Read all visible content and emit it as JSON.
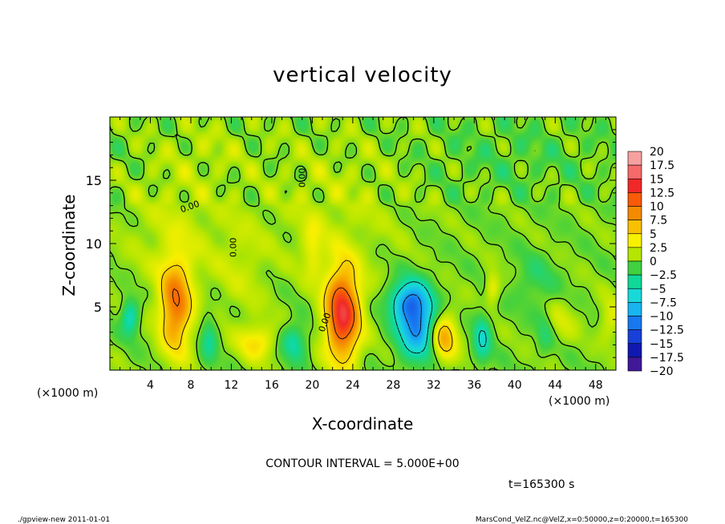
{
  "chart_data": {
    "type": "heatmap",
    "title": "vertical velocity",
    "xlabel": "X-coordinate",
    "ylabel": "Z-coordinate",
    "x_unit_left": "(×1000 m)",
    "x_unit_right": "(×1000 m)",
    "xlim": [
      0,
      50
    ],
    "ylim": [
      0,
      20
    ],
    "x_ticks": [
      4,
      8,
      12,
      16,
      20,
      24,
      28,
      32,
      36,
      40,
      44,
      48
    ],
    "y_ticks": [
      5,
      10,
      15
    ],
    "contour_interval_text": "CONTOUR INTERVAL = 5.000E+00",
    "time_text": "t=165300 s",
    "contour_label": "0.00",
    "colorbar": {
      "levels": [
        20,
        17.5,
        15,
        12.5,
        10,
        7.5,
        5,
        2.5,
        0,
        -2.5,
        -5,
        -7.5,
        -10,
        -12.5,
        -15,
        -17.5,
        -20
      ],
      "labels": [
        "20",
        "17.5",
        "15",
        "12.5",
        "10",
        "7.5",
        "5",
        "2.5",
        "0",
        "−2.5",
        "−5",
        "−7.5",
        "−10",
        "−12.5",
        "−15",
        "−17.5",
        "−20"
      ],
      "colors": [
        "#f7a0a0",
        "#f66a6a",
        "#f02828",
        "#f85a08",
        "#f48a00",
        "#f8c000",
        "#f8f000",
        "#b4e600",
        "#40d040",
        "#10d898",
        "#18d8d8",
        "#18b4f0",
        "#1878f0",
        "#1840d8",
        "#1018b0",
        "#401898"
      ]
    },
    "features": [
      {
        "x": 6.5,
        "z": 5.0,
        "sx": 1.1,
        "sz": 2.6,
        "v": 9.5
      },
      {
        "x": 23.0,
        "z": 4.4,
        "sx": 1.2,
        "sz": 2.6,
        "v": 14.0
      },
      {
        "x": 33.0,
        "z": 2.6,
        "sx": 0.9,
        "sz": 1.3,
        "v": 7.5
      },
      {
        "x": 14.5,
        "z": 2.2,
        "sx": 1.3,
        "sz": 1.0,
        "v": 4.5
      },
      {
        "x": 20.0,
        "z": 9.5,
        "sx": 0.7,
        "sz": 1.6,
        "v": 3.0
      },
      {
        "x": 37.8,
        "z": 6.5,
        "sx": 0.5,
        "sz": 0.8,
        "v": 4.0
      },
      {
        "x": 44.5,
        "z": 3.8,
        "sx": 1.2,
        "sz": 1.2,
        "v": 2.0
      },
      {
        "x": 49.5,
        "z": 4.0,
        "sx": 0.8,
        "sz": 1.2,
        "v": 3.0
      },
      {
        "x": 30.3,
        "z": 3.8,
        "sx": 1.3,
        "sz": 1.9,
        "v": -11.0
      },
      {
        "x": 29.2,
        "z": 5.5,
        "sx": 1.2,
        "sz": 1.0,
        "v": -6.0
      },
      {
        "x": 2.0,
        "z": 4.2,
        "sx": 0.6,
        "sz": 1.0,
        "v": -5.5
      },
      {
        "x": 9.8,
        "z": 2.5,
        "sx": 0.6,
        "sz": 1.4,
        "v": -3.5
      },
      {
        "x": 18.2,
        "z": 2.2,
        "sx": 0.9,
        "sz": 1.0,
        "v": -4.5
      },
      {
        "x": 36.8,
        "z": 2.5,
        "sx": 0.6,
        "sz": 1.4,
        "v": -5.0
      },
      {
        "x": 43.0,
        "z": 3.0,
        "sx": 0.6,
        "sz": 1.2,
        "v": -2.5
      },
      {
        "x": 42.0,
        "z": 7.0,
        "sx": 1.5,
        "sz": 1.5,
        "v": -2.0
      },
      {
        "x": 6.5,
        "z": 11.0,
        "sx": 3.5,
        "sz": 4.0,
        "v": 1.8
      },
      {
        "x": 22.0,
        "z": 13.0,
        "sx": 5.0,
        "sz": 4.0,
        "v": 1.5
      },
      {
        "x": 40.0,
        "z": 17.0,
        "sx": 6.0,
        "sz": 2.0,
        "v": -1.0
      },
      {
        "x": 13.0,
        "z": 8.0,
        "sx": 1.8,
        "sz": 3.0,
        "v": 1.5
      },
      {
        "x": 10.0,
        "z": 17.5,
        "sx": 3.0,
        "sz": 1.5,
        "v": 1.0
      }
    ]
  },
  "footer": {
    "left": "./gpview-new   2011-01-01",
    "right": "MarsCond_VelZ.nc@VelZ,x=0:50000,z=0:20000,t=165300"
  }
}
